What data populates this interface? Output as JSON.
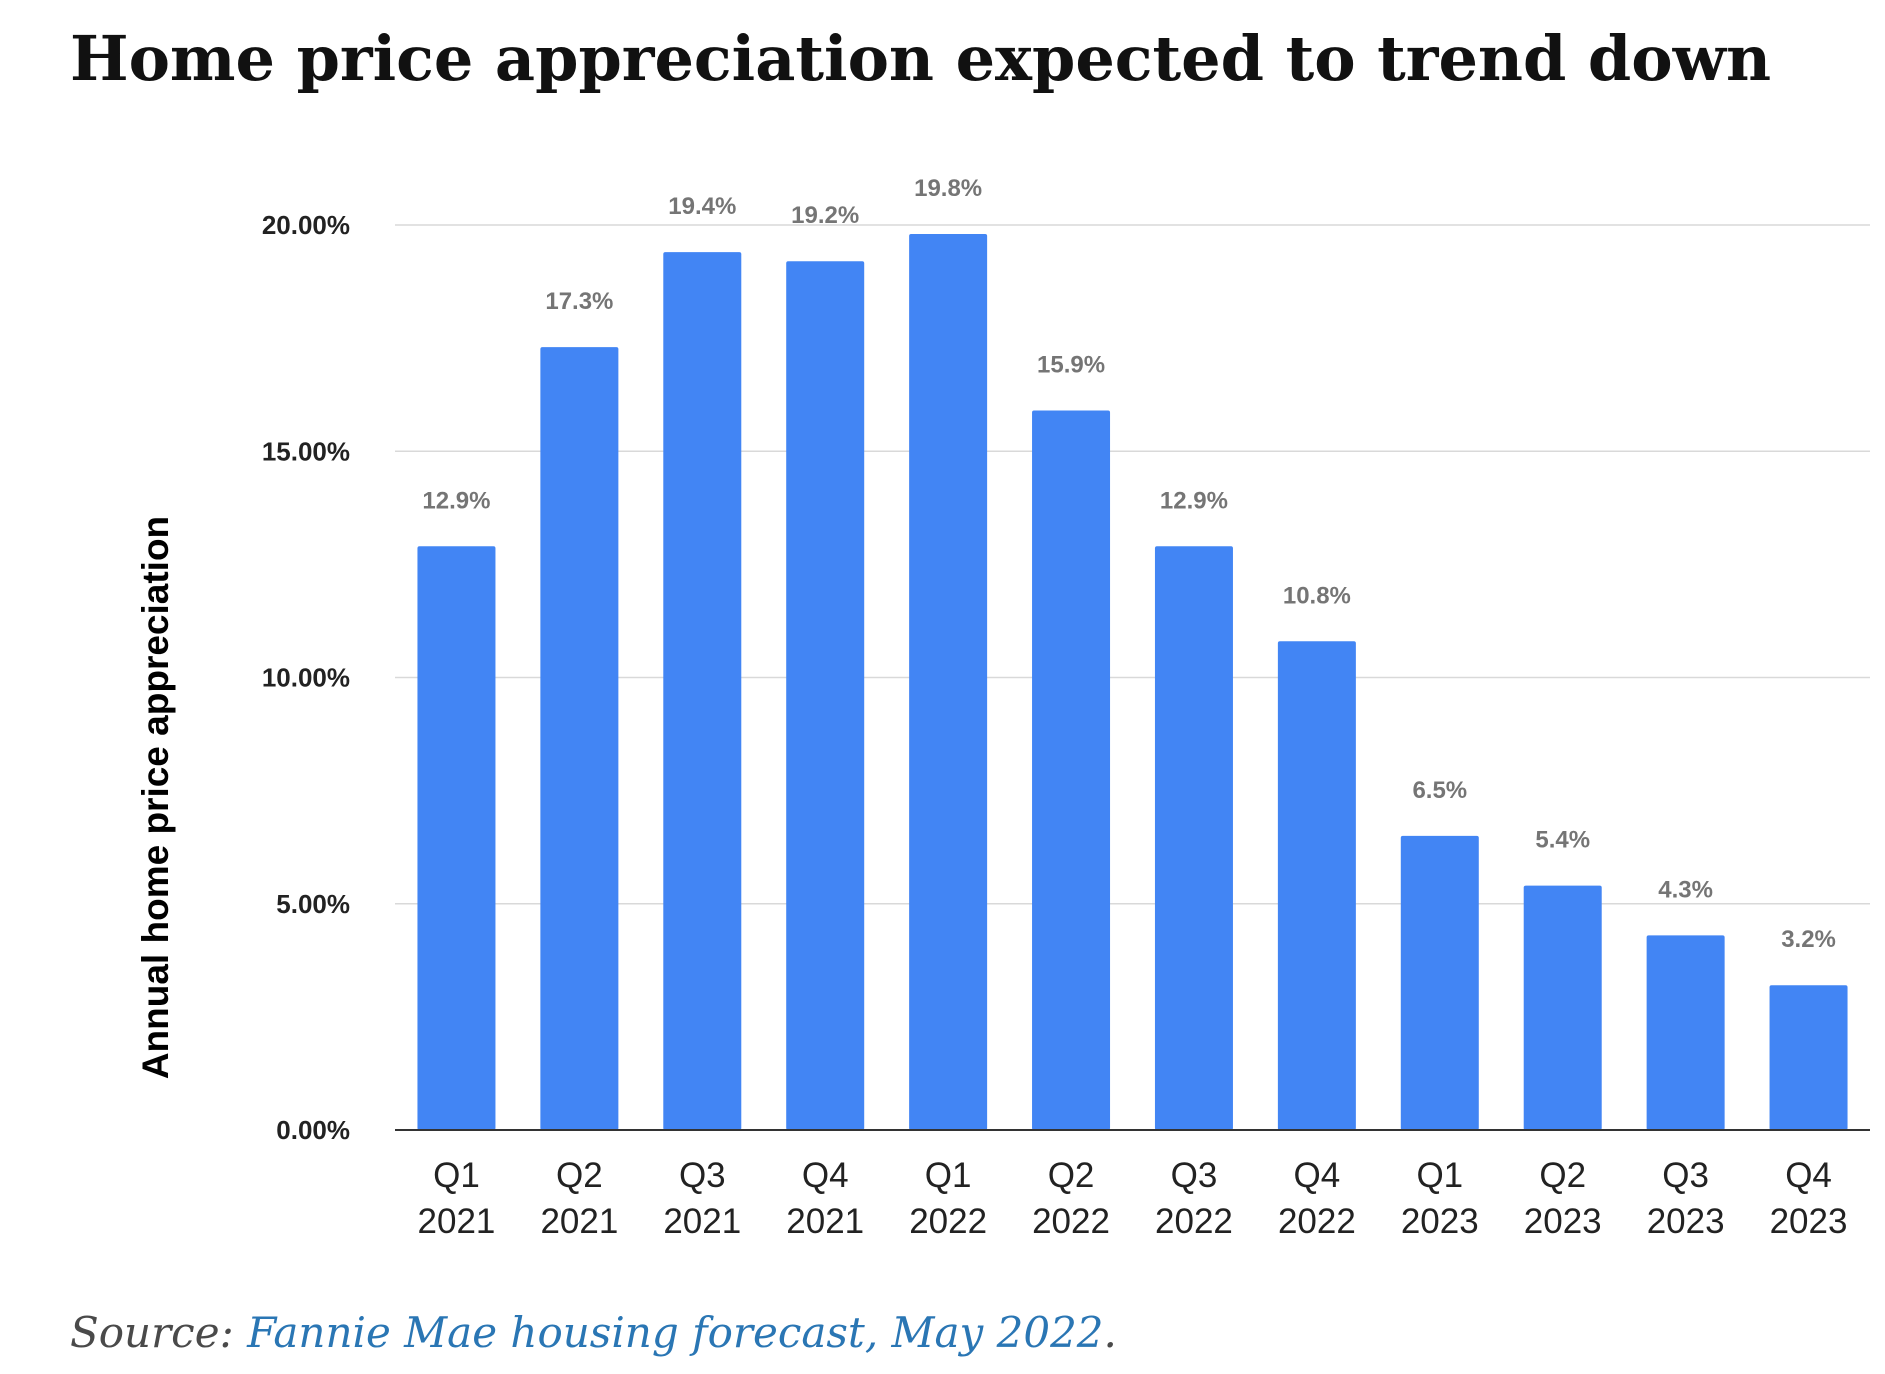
{
  "title": "Home price appreciation expected to trend down",
  "source": {
    "prefix": "Source: ",
    "link_text": "Fannie Mae housing forecast, May 2022",
    "suffix": "."
  },
  "colors": {
    "bar": "#4285f4",
    "grid": "#d9d9d9",
    "baseline": "#333333",
    "data_label": "#757575",
    "tick_label": "#222222",
    "axis_title": "#000000",
    "link": "#2a76b4"
  },
  "chart_data": {
    "type": "bar",
    "categories": [
      [
        "Q1",
        "2021"
      ],
      [
        "Q2",
        "2021"
      ],
      [
        "Q3",
        "2021"
      ],
      [
        "Q4",
        "2021"
      ],
      [
        "Q1",
        "2022"
      ],
      [
        "Q2",
        "2022"
      ],
      [
        "Q3",
        "2022"
      ],
      [
        "Q4",
        "2022"
      ],
      [
        "Q1",
        "2023"
      ],
      [
        "Q2",
        "2023"
      ],
      [
        "Q3",
        "2023"
      ],
      [
        "Q4",
        "2023"
      ]
    ],
    "values": [
      12.9,
      17.3,
      19.4,
      19.2,
      19.8,
      15.9,
      12.9,
      10.8,
      6.5,
      5.4,
      4.3,
      3.2
    ],
    "data_labels": [
      "12.9%",
      "17.3%",
      "19.4%",
      "19.2%",
      "19.8%",
      "15.9%",
      "12.9%",
      "10.8%",
      "6.5%",
      "5.4%",
      "4.3%",
      "3.2%"
    ],
    "ylabel": "Annual home price appreciation",
    "xlabel": "",
    "ylim": [
      0,
      20
    ],
    "yticks": [
      0,
      5,
      10,
      15,
      20
    ],
    "ytick_labels": [
      "0.00%",
      "5.00%",
      "10.00%",
      "15.00%",
      "20.00%"
    ],
    "grid": true,
    "legend": "none"
  }
}
